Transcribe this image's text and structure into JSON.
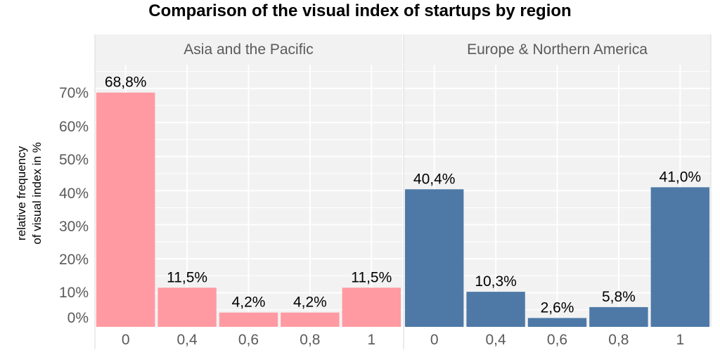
{
  "chart_data": {
    "type": "bar",
    "title": "Comparison of the visual index of startups by region",
    "ylabel_lines": [
      "relative frequency",
      "of visual index in %"
    ],
    "y_ticks": [
      "0%",
      "10%",
      "20%",
      "30%",
      "40%",
      "50%",
      "60%",
      "70%"
    ],
    "ylim": [
      0,
      77
    ],
    "categories": [
      "0",
      "0,4",
      "0,6",
      "0,8",
      "1"
    ],
    "panels": [
      {
        "name": "Asia and the Pacific",
        "color": "#FF9AA2",
        "values": [
          68.8,
          11.5,
          4.2,
          4.2,
          11.5
        ],
        "labels": [
          "68,8%",
          "11,5%",
          "4,2%",
          "4,2%",
          "11,5%"
        ]
      },
      {
        "name": "Europe & Northern America",
        "color": "#4E79A7",
        "values": [
          40.4,
          10.3,
          2.6,
          5.8,
          41.0
        ],
        "labels": [
          "40,4%",
          "10,3%",
          "2,6%",
          "5,8%",
          "41,0%"
        ]
      }
    ],
    "grid": true,
    "panel_background": "#F2F2F2",
    "strip_background": "#F2F2F2"
  }
}
